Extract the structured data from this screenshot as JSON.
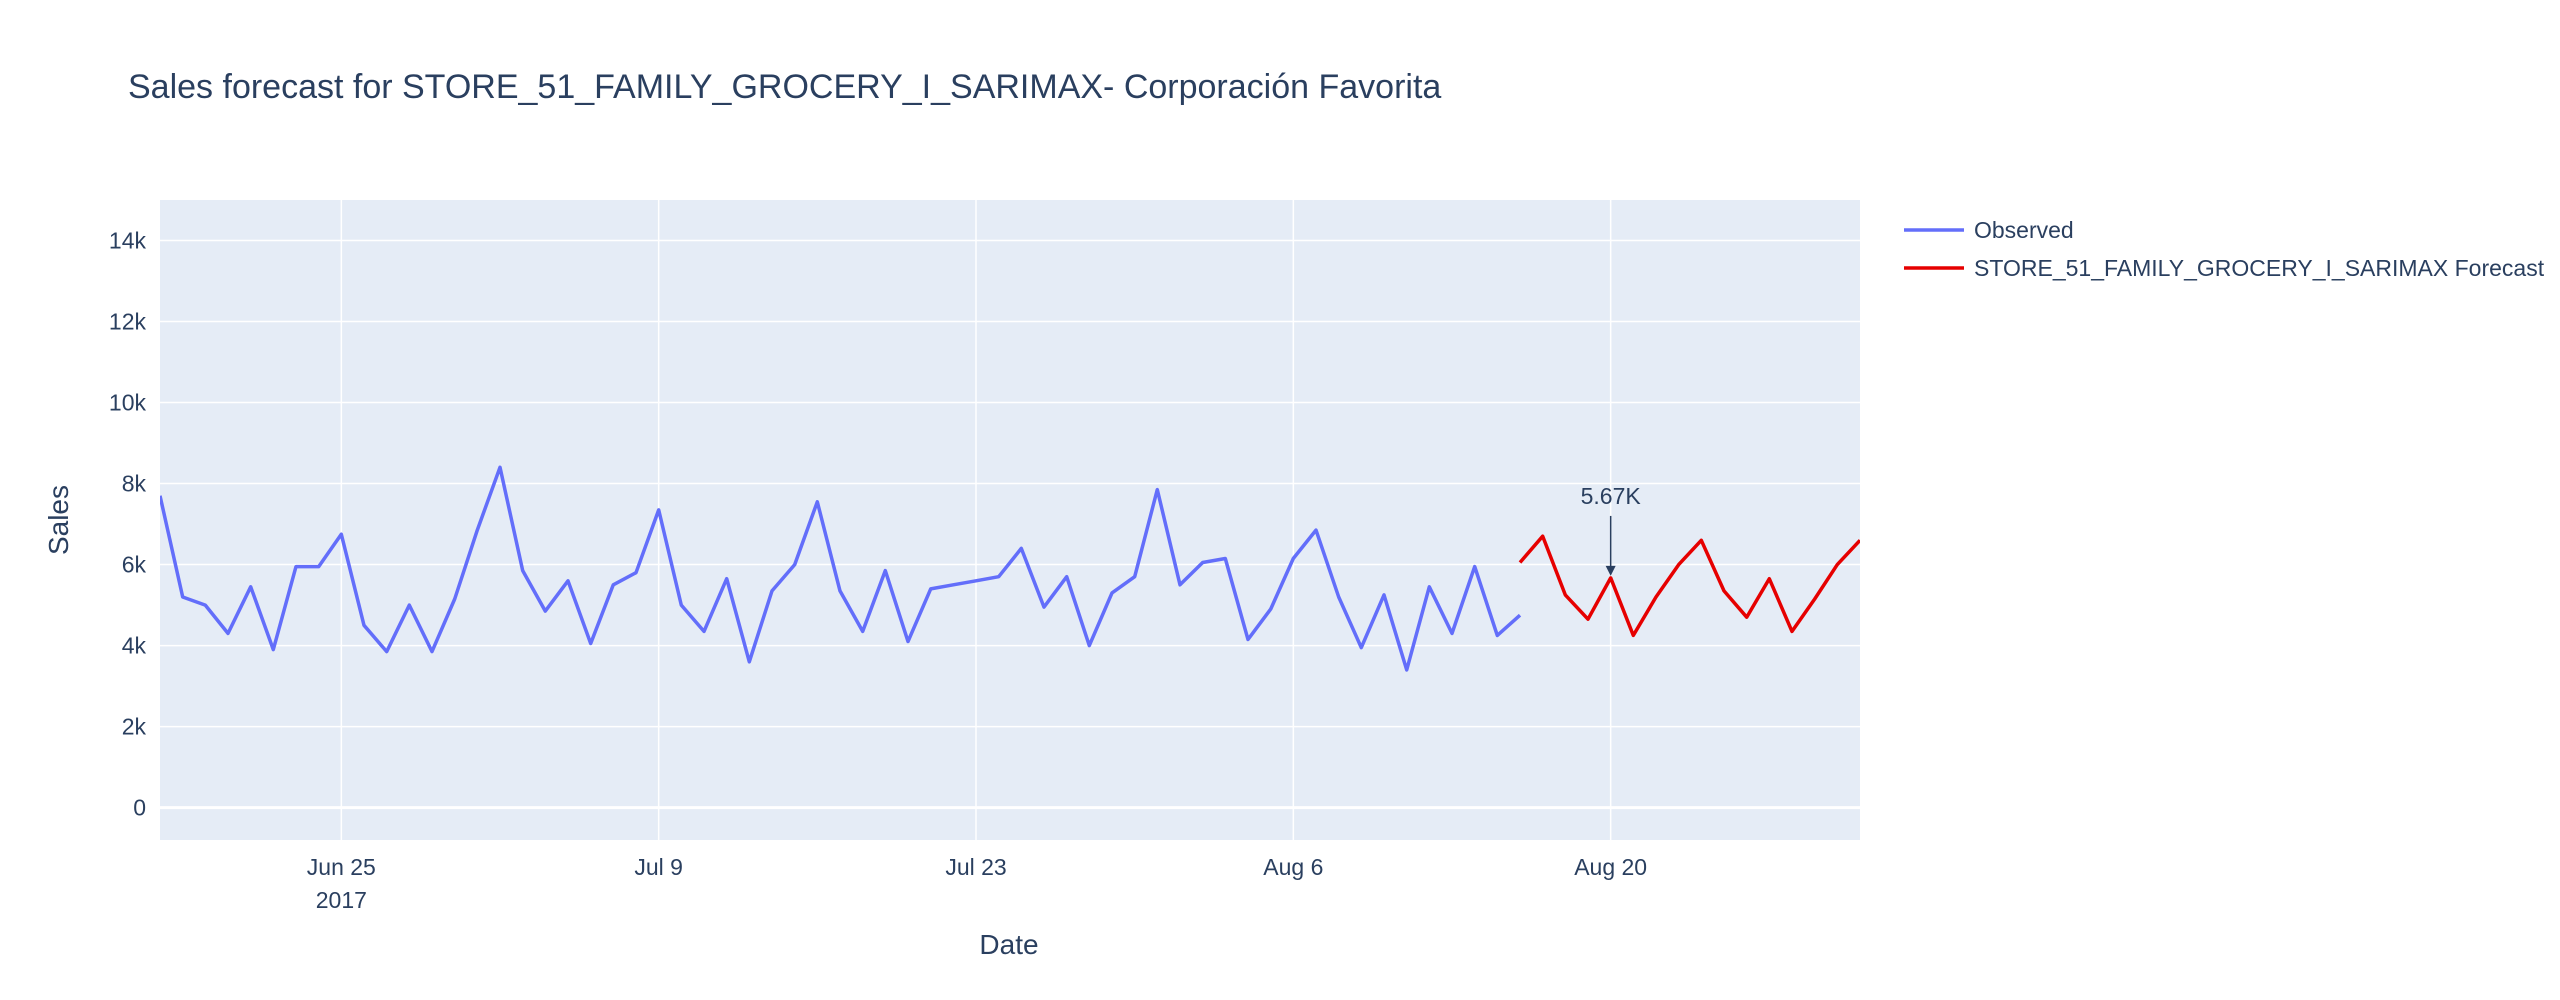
{
  "chart_data": {
    "type": "line",
    "title": "Sales forecast for STORE_51_FAMILY_GROCERY_I_SARIMAX- Corporación Favorita",
    "xlabel": "Date",
    "ylabel": "Sales",
    "x_range": [
      "2017-06-17",
      "2017-08-31"
    ],
    "ylim": [
      -800,
      15000
    ],
    "y_ticks": [
      0,
      2000,
      4000,
      6000,
      8000,
      10000,
      12000,
      14000
    ],
    "y_tick_labels": [
      "0",
      "2k",
      "4k",
      "6k",
      "8k",
      "10k",
      "12k",
      "14k"
    ],
    "x_ticks": [
      "2017-06-25",
      "2017-07-09",
      "2017-07-23",
      "2017-08-06",
      "2017-08-20"
    ],
    "x_tick_labels": [
      "Jun 25",
      "Jul 9",
      "Jul 23",
      "Aug 6",
      "Aug 20"
    ],
    "x_tick_year_label": "2017",
    "grid": true,
    "legend_position": "right",
    "colors": {
      "plot_bg": "#e5ecf6",
      "observed": "#636efa",
      "forecast": "#e60000",
      "text": "#2a3f5f"
    },
    "series": [
      {
        "name": "Observed",
        "start_date": "2017-06-17",
        "values": [
          7700,
          5200,
          5000,
          4300,
          5450,
          3900,
          5950,
          5950,
          6750,
          4500,
          3850,
          5000,
          3850,
          5150,
          6850,
          8400,
          5850,
          4850,
          5600,
          4050,
          5500,
          5800,
          7350,
          5000,
          4350,
          5650,
          3600,
          5350,
          6000,
          7550,
          5350,
          4350,
          5850,
          4100,
          5400,
          5500,
          5600,
          5700,
          6400,
          4950,
          5700,
          4000,
          5300,
          5700,
          7850,
          5500,
          6050,
          6150,
          4150,
          4900,
          6150,
          6850,
          5200,
          3950,
          5250,
          3400,
          5450,
          4300,
          5950,
          4250,
          4750
        ]
      },
      {
        "name": "STORE_51_FAMILY_GROCERY_I_SARIMAX Forecast",
        "start_date": "2017-08-16",
        "values": [
          6050,
          6700,
          5250,
          4650,
          5670,
          4250,
          5200,
          6000,
          6600,
          5350,
          4700,
          5650,
          4350,
          5150,
          6000,
          6600
        ]
      }
    ],
    "annotations": [
      {
        "x": "2017-08-20",
        "y": 5670,
        "text": "5.67K"
      }
    ]
  }
}
